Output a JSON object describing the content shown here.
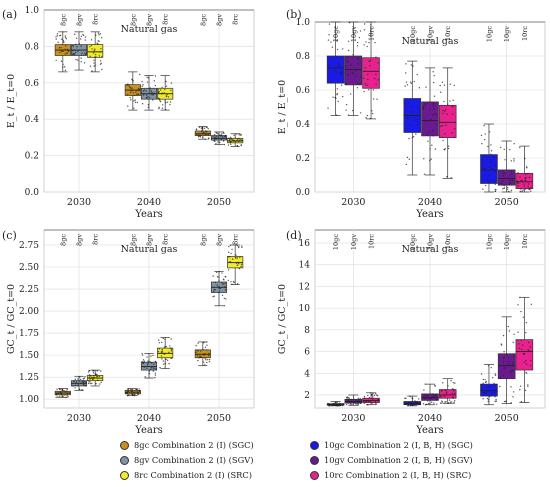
{
  "chart_data": [
    {
      "panel_label": "(a)",
      "type": "box",
      "annotation": "Natural gas",
      "xlabel": "Years",
      "ylabel": "E_t / E_t=0",
      "ylim": [
        0.0,
        1.0
      ],
      "yticks": [
        "0.0",
        "0.2",
        "0.4",
        "0.6",
        "0.8",
        "1.0"
      ],
      "categories": [
        "2030",
        "2040",
        "2050"
      ],
      "series_labels": [
        "8gc",
        "8gv",
        "8rc"
      ],
      "series": [
        {
          "code": "8gc",
          "color": "#c8901c",
          "boxes": [
            {
              "min": 0.66,
              "q1": 0.75,
              "median": 0.78,
              "q3": 0.81,
              "max": 0.88
            },
            {
              "min": 0.45,
              "q1": 0.53,
              "median": 0.56,
              "q3": 0.59,
              "max": 0.66
            },
            {
              "min": 0.29,
              "q1": 0.31,
              "median": 0.32,
              "q3": 0.335,
              "max": 0.36
            }
          ]
        },
        {
          "code": "8gv",
          "color": "#7f93a3",
          "boxes": [
            {
              "min": 0.67,
              "q1": 0.75,
              "median": 0.78,
              "q3": 0.81,
              "max": 0.88
            },
            {
              "min": 0.45,
              "q1": 0.51,
              "median": 0.54,
              "q3": 0.57,
              "max": 0.64
            },
            {
              "min": 0.26,
              "q1": 0.285,
              "median": 0.295,
              "q3": 0.31,
              "max": 0.33
            }
          ]
        },
        {
          "code": "8rc",
          "color": "#f0ea2a",
          "boxes": [
            {
              "min": 0.66,
              "q1": 0.74,
              "median": 0.77,
              "q3": 0.81,
              "max": 0.88
            },
            {
              "min": 0.45,
              "q1": 0.51,
              "median": 0.54,
              "q3": 0.57,
              "max": 0.64
            },
            {
              "min": 0.25,
              "q1": 0.27,
              "median": 0.28,
              "q3": 0.295,
              "max": 0.32
            }
          ]
        }
      ]
    },
    {
      "panel_label": "(b)",
      "type": "box",
      "annotation": "Natural gas",
      "xlabel": "Years",
      "ylabel": "E_t / E_t=0",
      "ylim": [
        0.0,
        1.0
      ],
      "yticks": [
        "0.0",
        "0.2",
        "0.4",
        "0.6",
        "0.8",
        "1.0"
      ],
      "categories": [
        "2030",
        "2040",
        "2050"
      ],
      "series_labels": [
        "10gc",
        "10gv",
        "10rc"
      ],
      "series": [
        {
          "code": "10gc",
          "color": "#1a1ae6",
          "boxes": [
            {
              "min": 0.45,
              "q1": 0.64,
              "median": 0.73,
              "q3": 0.8,
              "max": 1.0
            },
            {
              "min": 0.1,
              "q1": 0.35,
              "median": 0.45,
              "q3": 0.55,
              "max": 0.77
            },
            {
              "min": 0.0,
              "q1": 0.05,
              "median": 0.13,
              "q3": 0.22,
              "max": 0.4
            }
          ]
        },
        {
          "code": "10gv",
          "color": "#6a1a8f",
          "boxes": [
            {
              "min": 0.45,
              "q1": 0.63,
              "median": 0.72,
              "q3": 0.8,
              "max": 1.0
            },
            {
              "min": 0.1,
              "q1": 0.33,
              "median": 0.42,
              "q3": 0.53,
              "max": 0.73
            },
            {
              "min": 0.0,
              "q1": 0.04,
              "median": 0.08,
              "q3": 0.13,
              "max": 0.3
            }
          ]
        },
        {
          "code": "10rc",
          "color": "#e8218f",
          "boxes": [
            {
              "min": 0.43,
              "q1": 0.61,
              "median": 0.71,
              "q3": 0.79,
              "max": 1.0
            },
            {
              "min": 0.08,
              "q1": 0.32,
              "median": 0.41,
              "q3": 0.51,
              "max": 0.73
            },
            {
              "min": 0.0,
              "q1": 0.02,
              "median": 0.06,
              "q3": 0.11,
              "max": 0.27
            }
          ]
        }
      ]
    },
    {
      "panel_label": "(c)",
      "type": "box",
      "annotation": "Natural gas",
      "xlabel": "Years",
      "ylabel": "GC_t / GC_t=0",
      "ylim": [
        0.9,
        2.92
      ],
      "yticks": [
        "1.00",
        "1.25",
        "1.50",
        "1.75",
        "2.00",
        "2.25",
        "2.50",
        "2.75"
      ],
      "categories": [
        "2030",
        "2040",
        "2050"
      ],
      "series_labels": [
        "8gc",
        "8gv",
        "8rc"
      ],
      "series": [
        {
          "code": "8gc",
          "color": "#c8901c",
          "boxes": [
            {
              "min": 1.02,
              "q1": 1.05,
              "median": 1.07,
              "q3": 1.09,
              "max": 1.12
            },
            {
              "min": 1.04,
              "q1": 1.06,
              "median": 1.08,
              "q3": 1.1,
              "max": 1.12
            },
            {
              "min": 1.38,
              "q1": 1.47,
              "median": 1.51,
              "q3": 1.56,
              "max": 1.65
            }
          ]
        },
        {
          "code": "8gv",
          "color": "#7f93a3",
          "boxes": [
            {
              "min": 1.1,
              "q1": 1.15,
              "median": 1.18,
              "q3": 1.21,
              "max": 1.26
            },
            {
              "min": 1.24,
              "q1": 1.33,
              "median": 1.37,
              "q3": 1.42,
              "max": 1.52
            },
            {
              "min": 2.06,
              "q1": 2.21,
              "median": 2.27,
              "q3": 2.33,
              "max": 2.45
            }
          ]
        },
        {
          "code": "8rc",
          "color": "#f0ea2a",
          "boxes": [
            {
              "min": 1.15,
              "q1": 1.21,
              "median": 1.24,
              "q3": 1.27,
              "max": 1.33
            },
            {
              "min": 1.35,
              "q1": 1.47,
              "median": 1.52,
              "q3": 1.58,
              "max": 1.7
            },
            {
              "min": 2.3,
              "q1": 2.49,
              "median": 2.55,
              "q3": 2.62,
              "max": 2.75
            }
          ]
        }
      ]
    },
    {
      "panel_label": "(d)",
      "type": "box",
      "annotation": "Natural gas",
      "xlabel": "Years",
      "ylabel": "GC_t / GC_t=0",
      "ylim": [
        0.8,
        17.2
      ],
      "yticks": [
        "2",
        "4",
        "6",
        "8",
        "10",
        "12",
        "14",
        "16"
      ],
      "categories": [
        "2030",
        "2040",
        "2050"
      ],
      "series_labels": [
        "10gc",
        "10gv",
        "10rc"
      ],
      "series": [
        {
          "code": "10gc",
          "color": "#1a1ae6",
          "boxes": [
            {
              "min": 1.0,
              "q1": 1.05,
              "median": 1.1,
              "q3": 1.2,
              "max": 1.4
            },
            {
              "min": 1.0,
              "q1": 1.1,
              "median": 1.2,
              "q3": 1.4,
              "max": 1.9
            },
            {
              "min": 1.1,
              "q1": 1.9,
              "median": 2.4,
              "q3": 3.0,
              "max": 4.8
            }
          ]
        },
        {
          "code": "10gv",
          "color": "#6a1a8f",
          "boxes": [
            {
              "min": 1.05,
              "q1": 1.25,
              "median": 1.4,
              "q3": 1.6,
              "max": 2.0
            },
            {
              "min": 1.1,
              "q1": 1.5,
              "median": 1.75,
              "q3": 2.1,
              "max": 3.0
            },
            {
              "min": 1.2,
              "q1": 3.5,
              "median": 4.7,
              "q3": 5.8,
              "max": 9.2
            }
          ]
        },
        {
          "code": "10rc",
          "color": "#e8218f",
          "boxes": [
            {
              "min": 1.1,
              "q1": 1.3,
              "median": 1.5,
              "q3": 1.7,
              "max": 2.2
            },
            {
              "min": 1.2,
              "q1": 1.7,
              "median": 2.0,
              "q3": 2.5,
              "max": 3.5
            },
            {
              "min": 1.3,
              "q1": 4.3,
              "median": 6.0,
              "q3": 7.1,
              "max": 11.0
            }
          ]
        }
      ]
    }
  ],
  "legend": [
    {
      "code": "8gc",
      "label": "8gc Combination 2 (I) (SGC)",
      "color": "#c8901c"
    },
    {
      "code": "10gc",
      "label": "10gc Combination 2 (I, B, H) (SGC)",
      "color": "#1a1ae6"
    },
    {
      "code": "8gv",
      "label": "8gv Combination 2 (I) (SGV)",
      "color": "#7f93a3"
    },
    {
      "code": "10gv",
      "label": "10gv Combination 2 (I, B, H) (SGV)",
      "color": "#6a1a8f"
    },
    {
      "code": "8rc",
      "label": "8rc Combination 2 (I) (SRC)",
      "color": "#f0ea2a"
    },
    {
      "code": "10rc",
      "label": "10rc Combination 2 (I, B, H) (SRC)",
      "color": "#e8218f"
    }
  ]
}
